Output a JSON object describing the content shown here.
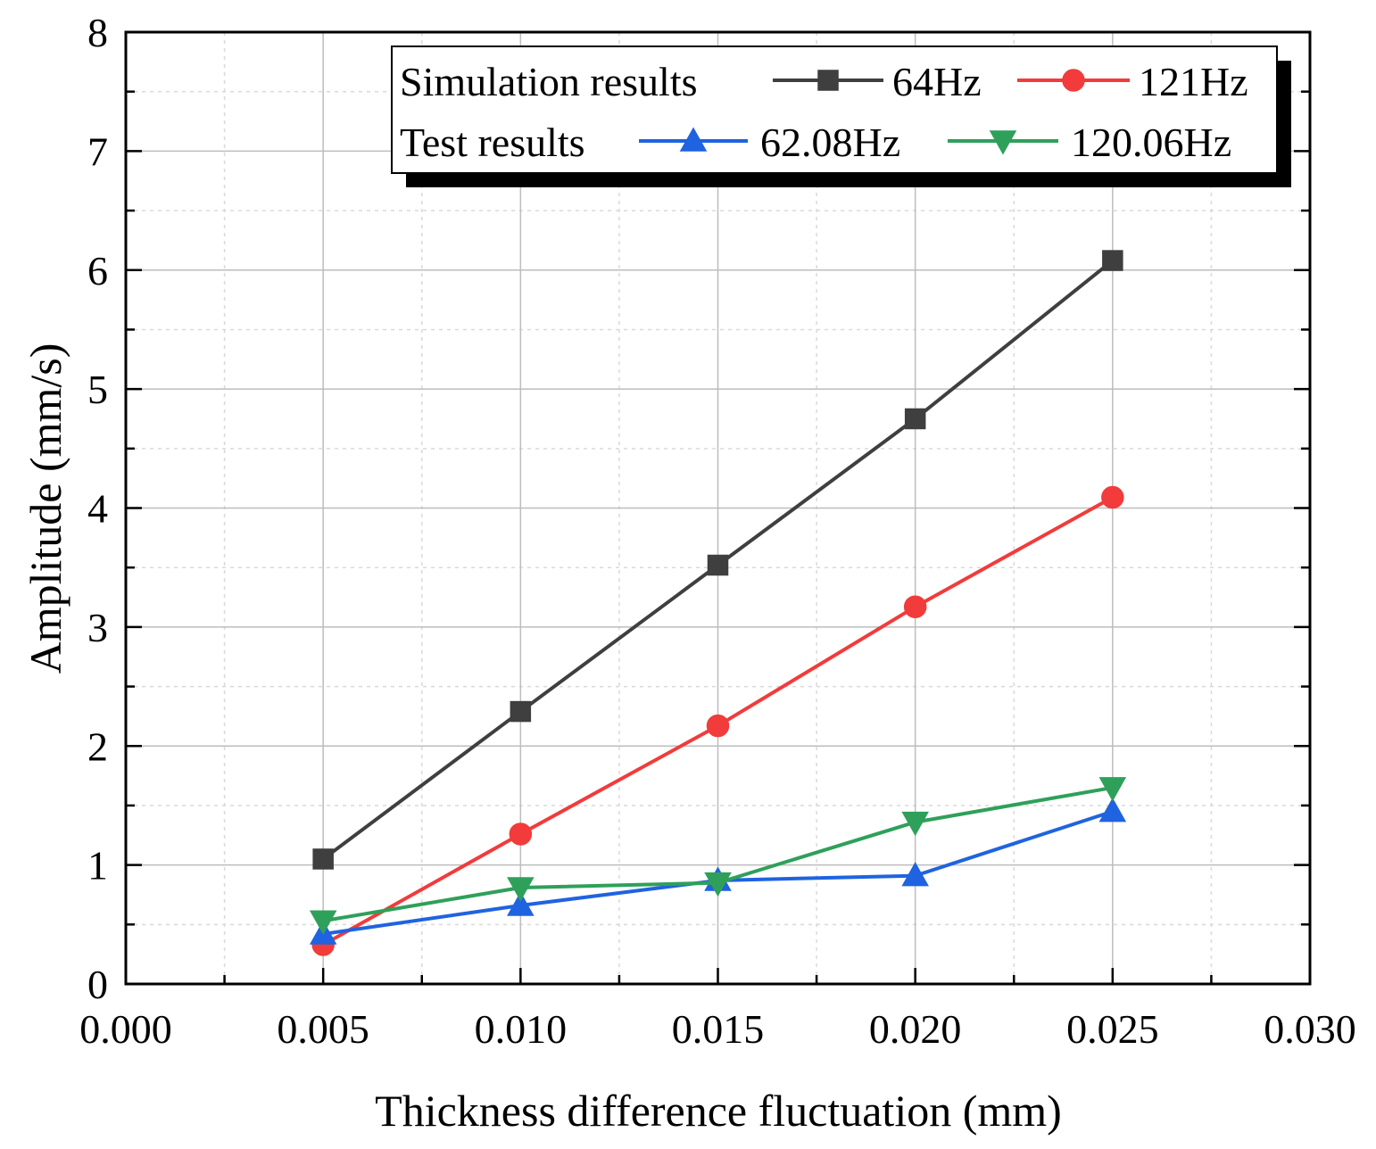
{
  "chart_data": {
    "type": "line",
    "title": "",
    "xlabel": "Thickness difference fluctuation (mm)",
    "ylabel": "Amplitude (mm/s)",
    "xlim": [
      0.0,
      0.03
    ],
    "ylim": [
      0,
      8
    ],
    "xticks": [
      "0.000",
      "0.005",
      "0.010",
      "0.015",
      "0.020",
      "0.025",
      "0.030"
    ],
    "xtick_values": [
      0.0,
      0.005,
      0.01,
      0.015,
      0.02,
      0.025,
      0.03
    ],
    "yticks": [
      "0",
      "1",
      "2",
      "3",
      "4",
      "5",
      "6",
      "7",
      "8"
    ],
    "ytick_values": [
      0,
      1,
      2,
      3,
      4,
      5,
      6,
      7,
      8
    ],
    "grid": true,
    "x": [
      0.005,
      0.01,
      0.015,
      0.02,
      0.025
    ],
    "legend": {
      "position": "top-right",
      "groups": [
        {
          "label": "Simulation results",
          "series_names": [
            "64Hz",
            "121Hz"
          ]
        },
        {
          "label": "Test results",
          "series_names": [
            "62.08Hz",
            "120.06Hz"
          ]
        }
      ]
    },
    "series": [
      {
        "name": "64Hz",
        "group": "Simulation results",
        "marker": "square",
        "color": "#3f3f3f",
        "values": [
          1.05,
          2.29,
          3.52,
          4.75,
          6.08
        ]
      },
      {
        "name": "121Hz",
        "group": "Simulation results",
        "marker": "circle",
        "color": "#f23b3b",
        "values": [
          0.33,
          1.26,
          2.17,
          3.17,
          4.09
        ]
      },
      {
        "name": "62.08Hz",
        "group": "Test results",
        "marker": "triangle-up",
        "color": "#1f63e0",
        "values": [
          0.42,
          0.66,
          0.87,
          0.91,
          1.45
        ]
      },
      {
        "name": "120.06Hz",
        "group": "Test results",
        "marker": "triangle-down",
        "color": "#2ea05a",
        "values": [
          0.53,
          0.81,
          0.85,
          1.36,
          1.65
        ]
      }
    ]
  }
}
